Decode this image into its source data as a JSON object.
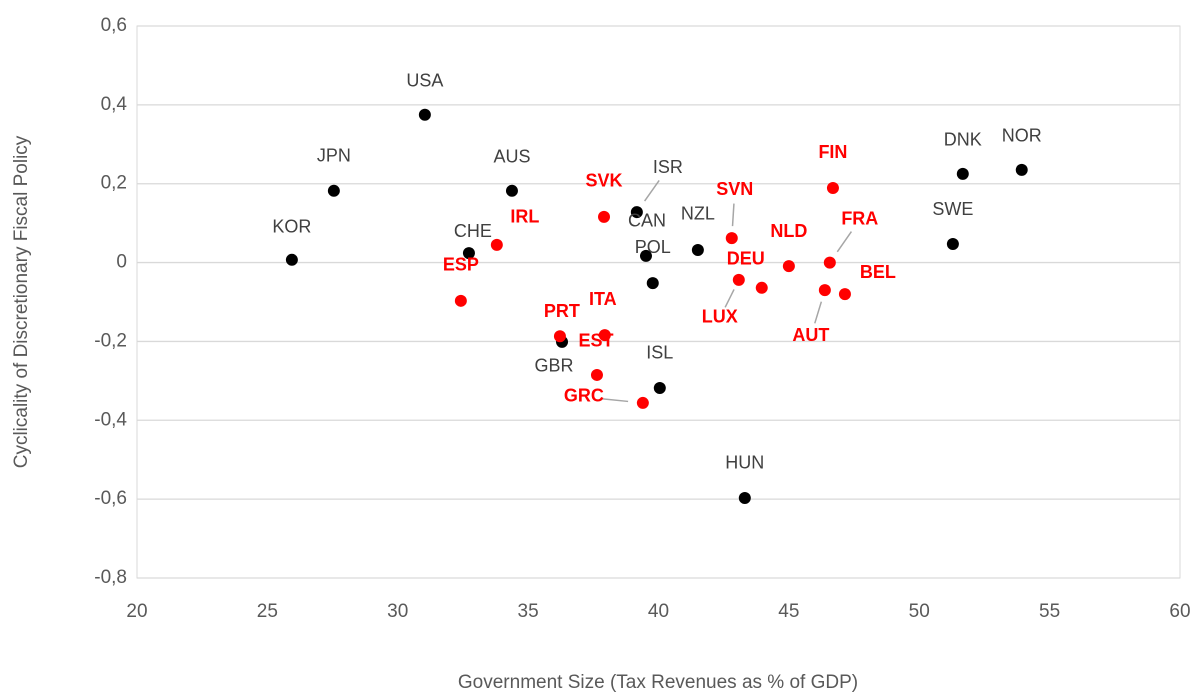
{
  "chart_data": {
    "type": "scatter",
    "x_label": "Government Size (Tax Revenues as % of GDP)",
    "y_label": "Cyclicality of Discretionary Fiscal Policy",
    "xlim": [
      20,
      60
    ],
    "xticks": [
      20,
      25,
      30,
      35,
      40,
      45,
      50,
      55,
      60
    ],
    "ylim": [
      -0.8,
      0.6
    ],
    "yticks": [
      {
        "value": -0.8,
        "label": "-0,8"
      },
      {
        "value": -0.6,
        "label": "-0,6"
      },
      {
        "value": -0.4,
        "label": "-0,4"
      },
      {
        "value": -0.2,
        "label": "-0,2"
      },
      {
        "value": 0,
        "label": "0"
      },
      {
        "value": 0.2,
        "label": "0,2"
      },
      {
        "value": 0.4,
        "label": "0,4"
      },
      {
        "value": 0.6,
        "label": "0,6"
      }
    ],
    "grid": true,
    "series": [
      {
        "color": "#000000",
        "labels": [
          "USA",
          "JPN",
          "KOR",
          "AUS",
          "CHE",
          "ISR",
          "CAN",
          "POL",
          "NZL",
          "GBR",
          "ISL",
          "HUN",
          "DNK",
          "NOR",
          "SWE"
        ],
        "x": [
          31.04,
          27.55,
          25.94,
          34.38,
          32.73,
          39.17,
          39.52,
          39.78,
          41.51,
          36.3,
          40.05,
          43.31,
          51.67,
          53.93,
          51.29
        ],
        "values": [
          0.375,
          0.182,
          0.007,
          0.182,
          0.024,
          0.128,
          0.017,
          -0.052,
          0.032,
          -0.201,
          -0.318,
          -0.597,
          0.225,
          0.235,
          0.047
        ]
      },
      {
        "color": "#ff0000",
        "labels": [
          "FIN",
          "SVK",
          "IRL",
          "ESP",
          "SVN",
          "NLD",
          "FRA",
          "LUX",
          "DEU",
          "AUT",
          "BEL",
          "PRT",
          "ITA",
          "EST",
          "GRC"
        ],
        "x": [
          46.69,
          37.91,
          33.8,
          32.42,
          42.81,
          45.0,
          46.57,
          43.08,
          43.96,
          46.38,
          47.15,
          36.22,
          37.94,
          37.64,
          39.4
        ],
        "values": [
          0.189,
          0.116,
          0.045,
          -0.097,
          0.062,
          -0.009,
          0.0,
          -0.044,
          -0.064,
          -0.07,
          -0.08,
          -0.187,
          -0.184,
          -0.285,
          -0.356
        ]
      }
    ]
  }
}
